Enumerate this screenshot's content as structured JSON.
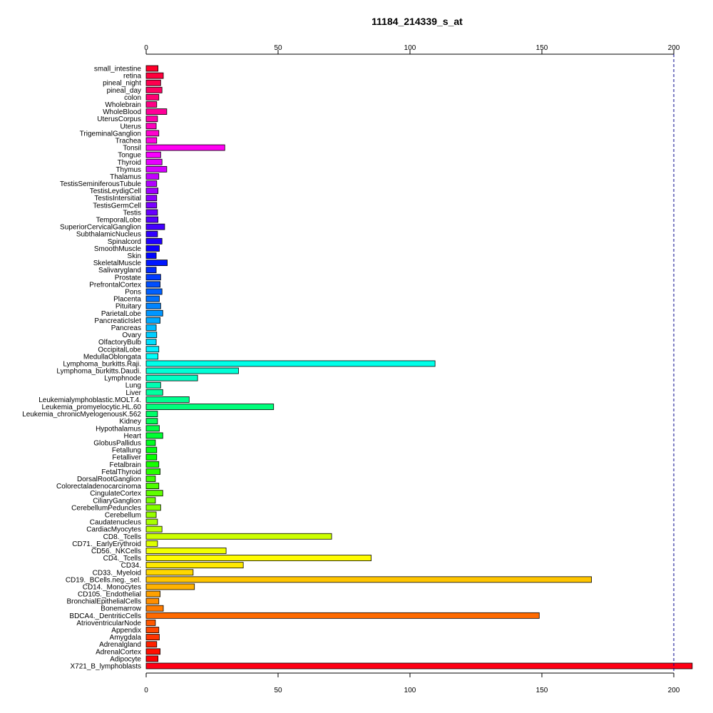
{
  "chart_data": {
    "type": "bar",
    "orientation": "horizontal",
    "title": "11184_214339_s_at",
    "xlabel": "",
    "ylabel": "",
    "xlim": [
      0,
      207
    ],
    "xticks": [
      0,
      50,
      100,
      150,
      200
    ],
    "reference_line": 200,
    "grid": false,
    "legend": "none",
    "categories": [
      "small_intestine",
      "retina",
      "pineal_night",
      "pineal_day",
      "colon",
      "Wholebrain",
      "WholeBlood",
      "UterusCorpus",
      "Uterus",
      "TrigeminalGanglion",
      "Trachea",
      "Tonsil",
      "Tongue",
      "Thyroid",
      "Thymus",
      "Thalamus",
      "TestisSeminiferousTubule",
      "TestisLeydigCell",
      "TestisIntersitial",
      "TestisGermCell",
      "Testis",
      "TemporalLobe",
      "SuperiorCervicalGanglion",
      "SubthalamicNucleus",
      "Spinalcord",
      "SmoothMuscle",
      "Skin",
      "SkeletalMuscle",
      "Salivarygland",
      "Prostate",
      "PrefrontalCortex",
      "Pons",
      "Placenta",
      "Pituitary",
      "ParietalLobe",
      "PancreaticIslet",
      "Pancreas",
      "Ovary",
      "OlfactoryBulb",
      "OccipitalLobe",
      "MedullaOblongata",
      "Lymphoma_burkitts.Raji.",
      "Lymphoma_burkitts.Daudi.",
      "Lymphnode",
      "Lung",
      "Liver",
      "Leukemialymphoblastic.MOLT.4.",
      "Leukemia_promyelocytic.HL.60",
      "Leukemia_chronicMyelogenousK.562",
      "Kidney",
      "Hypothalamus",
      "Heart",
      "GlobusPallidus",
      "Fetallung",
      "Fetalliver",
      "Fetalbrain",
      "FetalThyroid",
      "DorsalRootGanglion",
      "Colorectaladenocarcinoma",
      "CingulateCortex",
      "CiliaryGanglion",
      "CerebellumPeduncles",
      "Cerebellum",
      "Caudatenucleus",
      "CardiacMyocytes",
      "CD8._Tcells",
      "CD71._EarlyErythroid",
      "CD56._NKCells",
      "CD4._Tcells",
      "CD34.",
      "CD33._Myeloid",
      "CD19._BCells.neg._sel.",
      "CD14._Monocytes",
      "CD105._Endothelial",
      "BronchialEpithelialCells",
      "Bonemarrow",
      "BDCA4._DentriticCells",
      "AtrioventricularNode",
      "Appendix",
      "Amygdala",
      "Adrenalgland",
      "AdrenalCortex",
      "Adipocyte",
      "X721_B_lymphoblasts"
    ],
    "values": [
      4.5,
      6.5,
      5.5,
      6,
      4.8,
      4,
      7.8,
      4.3,
      3.8,
      4.8,
      4,
      29.8,
      5.5,
      6,
      7.8,
      4.8,
      4,
      4.5,
      4,
      4,
      4.3,
      4.5,
      7,
      4.3,
      6,
      5,
      3.8,
      8,
      3.8,
      5.5,
      5.3,
      6,
      5,
      5.5,
      6.3,
      5.3,
      3.8,
      4,
      3.8,
      4.8,
      4.5,
      109.5,
      35,
      19.5,
      5.5,
      6.3,
      16.3,
      48.3,
      4.3,
      4.3,
      5,
      6.3,
      3.5,
      4,
      4,
      4.8,
      5.3,
      3.5,
      4.8,
      6.3,
      3.5,
      5.5,
      3.8,
      4.3,
      6,
      70.3,
      4.3,
      30.3,
      85.3,
      36.8,
      17.8,
      168.8,
      18.3,
      5.3,
      4.8,
      6.5,
      149,
      3.5,
      4.8,
      5,
      4,
      5.3,
      4.5,
      207
    ]
  }
}
